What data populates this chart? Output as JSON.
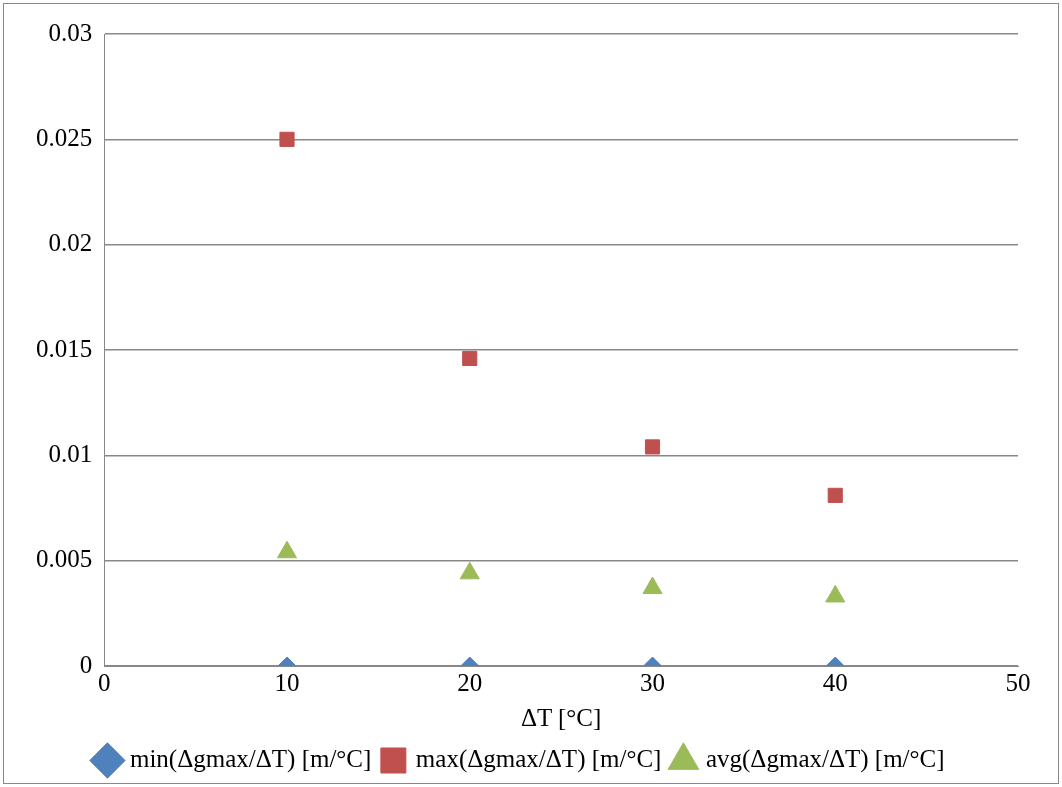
{
  "chart_data": {
    "type": "scatter",
    "xlabel": "ΔT [°C]",
    "x": [
      10,
      20,
      30,
      40
    ],
    "series": [
      {
        "name": "min(Δgmax/ΔT) [m/°C]",
        "color": "#4f81bd",
        "marker": "diamond",
        "values": [
          0,
          0,
          0,
          0
        ]
      },
      {
        "name": "max(Δgmax/ΔT) [m/°C]",
        "color": "#c0504d",
        "marker": "square",
        "values": [
          0.025,
          0.0146,
          0.0104,
          0.0081
        ]
      },
      {
        "name": "avg(Δgmax/ΔT) [m/°C]",
        "color": "#9bbb59",
        "marker": "triangle",
        "values": [
          0.0054,
          0.0044,
          0.0037,
          0.0033
        ]
      }
    ],
    "xlim": [
      0,
      50
    ],
    "xticks": [
      0,
      10,
      20,
      30,
      40,
      50
    ],
    "ylim": [
      0,
      0.03
    ],
    "yticks": [
      0,
      0.005,
      0.01,
      0.015,
      0.02,
      0.025,
      0.03
    ],
    "grid": "y",
    "legend": "bottom"
  }
}
